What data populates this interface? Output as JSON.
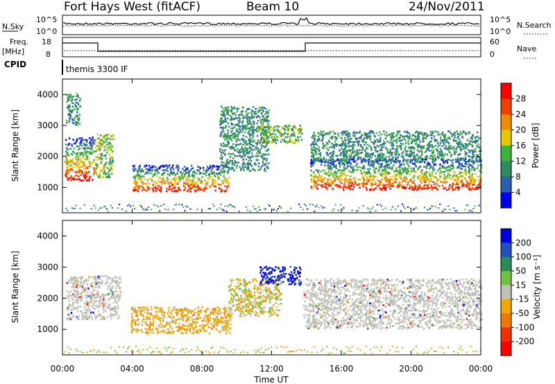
{
  "header": {
    "station": "Fort Hays West (fitACF)",
    "beam": "Beam 10",
    "date": "24/Nov/2011"
  },
  "top_panels": {
    "nsky_label": "N.Sky",
    "nsky_ticks": [
      "10^5",
      "10^0"
    ],
    "nsearch_label": "N.Search",
    "nsearch_ticks": [
      "10^5",
      "10^0"
    ],
    "freq_label": "Freq.",
    "freq_unit": "[MHz]",
    "freq_ticks": [
      "18",
      "8"
    ],
    "nave_label": "Nave",
    "nave_ticks": [
      "60",
      "0"
    ],
    "cpid_label": "CPID",
    "cpid_value": "themis 3300 IF"
  },
  "chart_data": [
    {
      "type": "heatmap",
      "panel": "power",
      "ylabel": "Slant Range [km]",
      "xlabel": "",
      "ylim": [
        180,
        4500
      ],
      "yticks": [
        "1000",
        "2000",
        "3000",
        "4000"
      ],
      "colorbar_label": "Power [dB]",
      "colorbar_ticks": [
        "4",
        "8",
        "12",
        "16",
        "20",
        "24",
        "28"
      ],
      "colors": [
        "#0000ee",
        "#2a5fb0",
        "#2f8a60",
        "#3cb43c",
        "#e6c800",
        "#f08c00",
        "#f04000",
        "#ff0000"
      ],
      "echo_regions": [
        {
          "t": [
            0.1,
            1.8
          ],
          "r": [
            1200,
            2600
          ],
          "level": "high"
        },
        {
          "t": [
            0.2,
            1.0
          ],
          "r": [
            3000,
            4000
          ],
          "level": "low"
        },
        {
          "t": [
            1.8,
            2.9
          ],
          "r": [
            1300,
            2700
          ],
          "level": "mid"
        },
        {
          "t": [
            4.0,
            9.5
          ],
          "r": [
            850,
            1700
          ],
          "level": "high"
        },
        {
          "t": [
            9.0,
            11.8
          ],
          "r": [
            1500,
            3600
          ],
          "level": "low"
        },
        {
          "t": [
            11.2,
            13.7
          ],
          "r": [
            2400,
            3000
          ],
          "level": "mid"
        },
        {
          "t": [
            14.2,
            24.0
          ],
          "r": [
            900,
            1900
          ],
          "level": "high"
        },
        {
          "t": [
            14.2,
            24.0
          ],
          "r": [
            1800,
            2800
          ],
          "level": "low"
        }
      ]
    },
    {
      "type": "heatmap",
      "panel": "velocity",
      "ylabel": "Slant Range [km]",
      "xlabel": "Time UT",
      "ylim": [
        180,
        4500
      ],
      "yticks": [
        "1000",
        "2000",
        "3000",
        "4000"
      ],
      "xticks": [
        "00:00",
        "04:00",
        "08:00",
        "12:00",
        "16:00",
        "20:00",
        "00:00"
      ],
      "xlim_hours": [
        0,
        24
      ],
      "colorbar_label": "Velocity [m s⁻¹]",
      "colorbar_ticks": [
        "200",
        "100",
        "50",
        "15",
        "-15",
        "-50",
        "-100",
        "-200"
      ],
      "colors": [
        "#0000dd",
        "#2050c0",
        "#2e8b57",
        "#6fc040",
        "#c0c0b8",
        "#f0a800",
        "#f07800",
        "#f03000",
        "#ff0000"
      ],
      "echo_regions": [
        {
          "t": [
            0.2,
            3.3
          ],
          "r": [
            1300,
            2700
          ],
          "level": "ground"
        },
        {
          "t": [
            3.9,
            9.6
          ],
          "r": [
            850,
            1700
          ],
          "level": "negative"
        },
        {
          "t": [
            9.5,
            12.5
          ],
          "r": [
            1400,
            2600
          ],
          "level": "neg-light"
        },
        {
          "t": [
            11.3,
            13.7
          ],
          "r": [
            2400,
            3000
          ],
          "level": "positive"
        },
        {
          "t": [
            13.8,
            24.0
          ],
          "r": [
            1000,
            2600
          ],
          "level": "ground"
        }
      ]
    }
  ]
}
